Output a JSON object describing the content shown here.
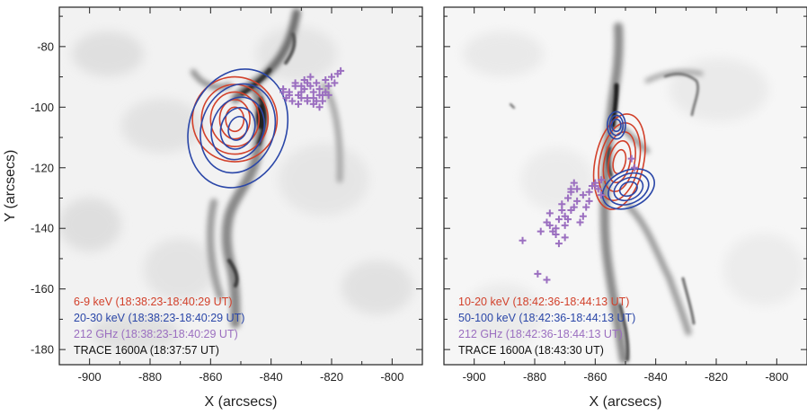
{
  "chart_data": [
    {
      "type": "scatter",
      "panel": "left",
      "xlabel": "X (arcsecs)",
      "ylabel": "Y (arcsecs)",
      "xlim": [
        -910,
        -790
      ],
      "ylim": [
        -185,
        -67
      ],
      "xticks": [
        -900,
        -880,
        -860,
        -840,
        -820,
        -800
      ],
      "yticks": [
        -80,
        -100,
        -120,
        -140,
        -160,
        -180
      ],
      "background": "TRACE 1600A image (inverted grayscale)",
      "legend": [
        {
          "text": "6-9 keV (18:38:23-18:40:29 UT)",
          "color": "#d2412b"
        },
        {
          "text": "20-30 keV (18:38:23-18:40:29 UT)",
          "color": "#2b47a8"
        },
        {
          "text": "212 GHz (18:38:23-18:40:29 UT)",
          "color": "#9b6fc0"
        },
        {
          "text": "TRACE 1600A (18:37:57 UT)",
          "color": "#111111"
        }
      ],
      "contours": [
        {
          "name": "6-9 keV",
          "color": "#d2412b",
          "cx": -852,
          "cy": -104,
          "rx": [
            14,
            11,
            8,
            5,
            3
          ],
          "ry": [
            14,
            11.5,
            9,
            6.5,
            4
          ]
        },
        {
          "name": "20-30 keV",
          "color": "#2b47a8",
          "cx": -851,
          "cy": -107,
          "rx": [
            16,
            12,
            8.5,
            5.5,
            3
          ],
          "ry": [
            20,
            15,
            10.5,
            7,
            4
          ]
        }
      ],
      "series": [
        {
          "name": "212 GHz",
          "color": "#9b6fc0",
          "marker": "+",
          "x": [
            -836,
            -834,
            -832,
            -831,
            -830,
            -829,
            -828,
            -827,
            -826,
            -825,
            -824,
            -823,
            -822,
            -821,
            -820,
            -818,
            -835,
            -833,
            -830,
            -828,
            -826,
            -824,
            -822,
            -819,
            -817,
            -832,
            -829,
            -827,
            -825,
            -823,
            -821,
            -836,
            -834,
            -831,
            -826,
            -824,
            -830,
            -828
          ],
          "y": [
            -94,
            -95,
            -93,
            -96,
            -95,
            -94,
            -97,
            -93,
            -95,
            -92,
            -94,
            -96,
            -91,
            -93,
            -90,
            -89,
            -97,
            -98,
            -97,
            -98,
            -97,
            -96,
            -95,
            -92,
            -88,
            -92,
            -91,
            -90,
            -98,
            -98,
            -96,
            -95,
            -96,
            -99,
            -99,
            -100,
            -93,
            -92
          ]
        }
      ]
    },
    {
      "type": "scatter",
      "panel": "right",
      "xlabel": "X (arcsecs)",
      "ylabel": "",
      "xlim": [
        -910,
        -790
      ],
      "ylim": [
        -185,
        -67
      ],
      "xticks": [
        -900,
        -880,
        -860,
        -840,
        -820,
        -800
      ],
      "yticks": [
        -80,
        -100,
        -120,
        -140,
        -160,
        -180
      ],
      "background": "TRACE 1600A image (inverted grayscale)",
      "legend": [
        {
          "text": "10-20 keV (18:42:36-18:44:13 UT)",
          "color": "#d2412b"
        },
        {
          "text": "50-100 keV (18:42:36-18:44:13 UT)",
          "color": "#2b47a8"
        },
        {
          "text": "212 GHz (18:42:36-18:44:13 UT)",
          "color": "#9b6fc0"
        },
        {
          "text": "TRACE 1600A (18:43:30 UT)",
          "color": "#111111"
        }
      ],
      "contours": [
        {
          "name": "10-20 keV",
          "color": "#d2412b",
          "cx": -852,
          "cy": -118,
          "rx": [
            8,
            6.5,
            5,
            3.5,
            2
          ],
          "ry": [
            16,
            13,
            10,
            7,
            4
          ]
        },
        {
          "name": "50-100 keV A",
          "color": "#2b47a8",
          "cx": -853,
          "cy": -106,
          "rx": [
            3,
            2.2,
            1.5
          ],
          "ry": [
            4.5,
            3.3,
            2
          ]
        },
        {
          "name": "50-100 keV B",
          "color": "#2b47a8",
          "cx": -849,
          "cy": -127,
          "rx": [
            9,
            7,
            5,
            3
          ],
          "ry": [
            6,
            4.8,
            3.5,
            2.2
          ]
        }
      ],
      "series": [
        {
          "name": "212 GHz",
          "color": "#9b6fc0",
          "marker": "+",
          "x": [
            -884,
            -879,
            -876,
            -875,
            -873,
            -872,
            -871,
            -870,
            -869,
            -868,
            -867,
            -866,
            -865,
            -864,
            -863,
            -862,
            -861,
            -860,
            -859,
            -858,
            -876,
            -874,
            -872,
            -870,
            -868,
            -866,
            -864,
            -862,
            -860,
            -858,
            -848,
            -847,
            -878,
            -875,
            -871,
            -869,
            -867,
            -873,
            -870,
            -868
          ],
          "y": [
            -144,
            -155,
            -157,
            -135,
            -140,
            -137,
            -132,
            -136,
            -130,
            -128,
            -125,
            -127,
            -138,
            -129,
            -133,
            -131,
            -126,
            -125,
            -127,
            -124,
            -138,
            -141,
            -145,
            -143,
            -134,
            -131,
            -136,
            -128,
            -126,
            -129,
            -117,
            -120,
            -141,
            -139,
            -134,
            -137,
            -133,
            -142,
            -139,
            -127
          ]
        }
      ]
    }
  ]
}
